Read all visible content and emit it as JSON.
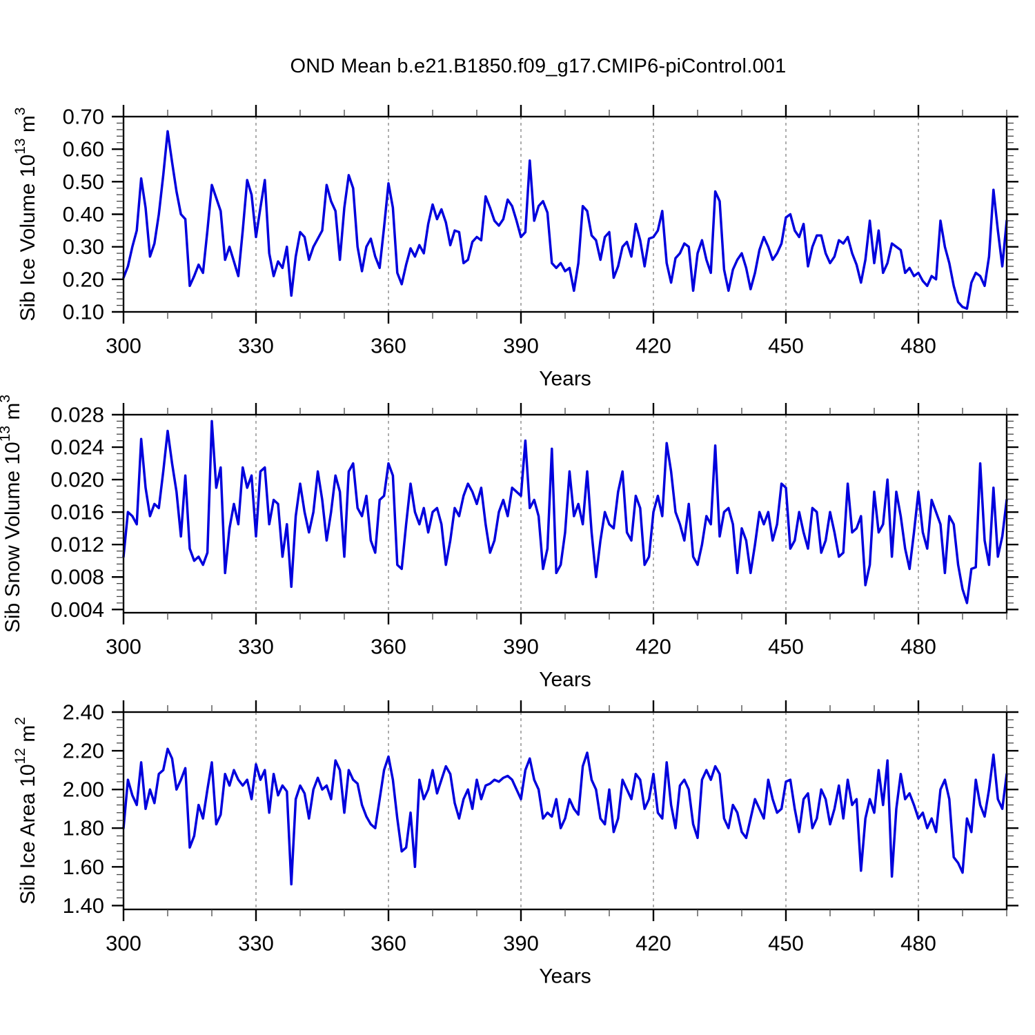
{
  "title": "OND Mean b.e21.B1850.f09_g17.CMIP6-piControl.001",
  "colors": {
    "line": "#0000dd",
    "frame": "#000000",
    "grid": "#808080",
    "minor_tick": "#444444",
    "background": "#ffffff"
  },
  "chart_data": [
    {
      "type": "line",
      "panel": "sib-ice-volume",
      "ylabel_segments": [
        {
          "t": "Sib Ice Volume 10"
        },
        {
          "t": "13",
          "sup": true
        },
        {
          "t": " m"
        },
        {
          "t": "3",
          "sup": true
        }
      ],
      "xlabel": "Years",
      "x_range": {
        "start": 300,
        "end": 500,
        "step": 1
      },
      "xlim": [
        300,
        500
      ],
      "xticks": [
        300,
        330,
        360,
        390,
        420,
        450,
        480
      ],
      "x_minor_step": 10,
      "grid_years": [
        330,
        360,
        390,
        420,
        450,
        480
      ],
      "ylim": [
        0.1,
        0.7
      ],
      "ytick_start": 0.1,
      "ytick_step": 0.1,
      "y_minor_step": 0.02,
      "ytick_decimals": 2,
      "values": [
        0.205,
        0.24,
        0.3,
        0.35,
        0.51,
        0.42,
        0.27,
        0.31,
        0.4,
        0.52,
        0.655,
        0.56,
        0.47,
        0.4,
        0.385,
        0.18,
        0.21,
        0.245,
        0.22,
        0.35,
        0.49,
        0.45,
        0.41,
        0.26,
        0.3,
        0.255,
        0.21,
        0.35,
        0.505,
        0.46,
        0.33,
        0.42,
        0.505,
        0.28,
        0.21,
        0.255,
        0.235,
        0.3,
        0.15,
        0.27,
        0.345,
        0.33,
        0.26,
        0.3,
        0.325,
        0.35,
        0.49,
        0.44,
        0.41,
        0.26,
        0.42,
        0.52,
        0.48,
        0.3,
        0.225,
        0.3,
        0.325,
        0.27,
        0.235,
        0.36,
        0.495,
        0.42,
        0.22,
        0.185,
        0.245,
        0.295,
        0.27,
        0.305,
        0.28,
        0.37,
        0.43,
        0.385,
        0.415,
        0.375,
        0.305,
        0.35,
        0.345,
        0.25,
        0.26,
        0.315,
        0.33,
        0.32,
        0.455,
        0.42,
        0.38,
        0.365,
        0.385,
        0.445,
        0.425,
        0.38,
        0.33,
        0.345,
        0.565,
        0.38,
        0.425,
        0.44,
        0.405,
        0.25,
        0.235,
        0.25,
        0.225,
        0.235,
        0.165,
        0.25,
        0.425,
        0.41,
        0.335,
        0.32,
        0.26,
        0.33,
        0.345,
        0.205,
        0.24,
        0.3,
        0.315,
        0.27,
        0.37,
        0.32,
        0.24,
        0.325,
        0.33,
        0.35,
        0.41,
        0.25,
        0.19,
        0.265,
        0.28,
        0.31,
        0.3,
        0.165,
        0.28,
        0.32,
        0.26,
        0.22,
        0.47,
        0.44,
        0.23,
        0.165,
        0.23,
        0.26,
        0.28,
        0.235,
        0.17,
        0.22,
        0.29,
        0.33,
        0.3,
        0.26,
        0.28,
        0.31,
        0.39,
        0.4,
        0.35,
        0.33,
        0.37,
        0.24,
        0.3,
        0.335,
        0.335,
        0.28,
        0.25,
        0.27,
        0.32,
        0.31,
        0.33,
        0.28,
        0.245,
        0.19,
        0.26,
        0.38,
        0.25,
        0.35,
        0.22,
        0.25,
        0.31,
        0.3,
        0.29,
        0.22,
        0.235,
        0.21,
        0.22,
        0.195,
        0.18,
        0.21,
        0.2,
        0.38,
        0.3,
        0.25,
        0.18,
        0.13,
        0.115,
        0.11,
        0.19,
        0.22,
        0.21,
        0.18,
        0.27,
        0.475,
        0.35,
        0.24,
        0.38
      ]
    },
    {
      "type": "line",
      "panel": "sib-snow-volume",
      "ylabel_segments": [
        {
          "t": "Sib Snow Volume 10"
        },
        {
          "t": "13",
          "sup": true
        },
        {
          "t": " m"
        },
        {
          "t": "3",
          "sup": true
        }
      ],
      "xlabel": "Years",
      "x_range": {
        "start": 300,
        "end": 500,
        "step": 1
      },
      "xlim": [
        300,
        500
      ],
      "xticks": [
        300,
        330,
        360,
        390,
        420,
        450,
        480
      ],
      "x_minor_step": 10,
      "grid_years": [
        330,
        360,
        390,
        420,
        450,
        480
      ],
      "ylim": [
        0.0036,
        0.028
      ],
      "ytick_start": 0.004,
      "ytick_step": 0.004,
      "y_minor_step": 0.0008,
      "ytick_decimals": 3,
      "values": [
        0.0105,
        0.016,
        0.0155,
        0.0145,
        0.025,
        0.019,
        0.0155,
        0.017,
        0.0165,
        0.021,
        0.026,
        0.022,
        0.0185,
        0.013,
        0.0205,
        0.0115,
        0.01,
        0.0105,
        0.0095,
        0.011,
        0.0272,
        0.019,
        0.0215,
        0.0085,
        0.014,
        0.017,
        0.0145,
        0.0215,
        0.019,
        0.0205,
        0.013,
        0.021,
        0.0215,
        0.0145,
        0.0175,
        0.017,
        0.0105,
        0.0145,
        0.0068,
        0.0155,
        0.0195,
        0.016,
        0.0135,
        0.016,
        0.021,
        0.0175,
        0.0125,
        0.016,
        0.0205,
        0.0185,
        0.0105,
        0.021,
        0.022,
        0.0165,
        0.0155,
        0.018,
        0.0125,
        0.011,
        0.0175,
        0.018,
        0.022,
        0.0205,
        0.0095,
        0.009,
        0.0145,
        0.0195,
        0.016,
        0.0145,
        0.0165,
        0.0135,
        0.016,
        0.0165,
        0.0145,
        0.0095,
        0.0125,
        0.0165,
        0.0155,
        0.018,
        0.0195,
        0.0185,
        0.017,
        0.019,
        0.0145,
        0.011,
        0.0125,
        0.016,
        0.0175,
        0.0155,
        0.019,
        0.0185,
        0.018,
        0.0248,
        0.0165,
        0.0175,
        0.0155,
        0.009,
        0.0115,
        0.0238,
        0.0085,
        0.0095,
        0.0135,
        0.021,
        0.0155,
        0.017,
        0.0145,
        0.021,
        0.0135,
        0.008,
        0.0125,
        0.016,
        0.0145,
        0.014,
        0.0185,
        0.021,
        0.0135,
        0.0125,
        0.018,
        0.0165,
        0.0095,
        0.0105,
        0.016,
        0.018,
        0.0155,
        0.0245,
        0.021,
        0.016,
        0.0145,
        0.0125,
        0.017,
        0.0105,
        0.0095,
        0.012,
        0.0155,
        0.0145,
        0.0242,
        0.013,
        0.016,
        0.0165,
        0.0145,
        0.0085,
        0.014,
        0.0125,
        0.0085,
        0.012,
        0.016,
        0.0145,
        0.016,
        0.0125,
        0.0145,
        0.0195,
        0.019,
        0.0115,
        0.0125,
        0.016,
        0.0135,
        0.0115,
        0.0165,
        0.016,
        0.011,
        0.0125,
        0.016,
        0.0135,
        0.0105,
        0.011,
        0.0195,
        0.0135,
        0.014,
        0.0155,
        0.007,
        0.0095,
        0.0185,
        0.0135,
        0.0145,
        0.02,
        0.0105,
        0.0185,
        0.0155,
        0.0115,
        0.009,
        0.0135,
        0.0185,
        0.0135,
        0.0115,
        0.0175,
        0.016,
        0.0145,
        0.0085,
        0.0155,
        0.0145,
        0.0095,
        0.0065,
        0.0048,
        0.009,
        0.0092,
        0.022,
        0.0125,
        0.0095,
        0.019,
        0.0105,
        0.013,
        0.0175
      ]
    },
    {
      "type": "line",
      "panel": "sib-ice-area",
      "ylabel_segments": [
        {
          "t": "Sib Ice Area 10"
        },
        {
          "t": "12",
          "sup": true
        },
        {
          "t": " m"
        },
        {
          "t": "2",
          "sup": true
        }
      ],
      "xlabel": "Years",
      "x_range": {
        "start": 300,
        "end": 500,
        "step": 1
      },
      "xlim": [
        300,
        500
      ],
      "xticks": [
        300,
        330,
        360,
        390,
        420,
        450,
        480
      ],
      "x_minor_step": 10,
      "grid_years": [
        330,
        360,
        390,
        420,
        450,
        480
      ],
      "ylim": [
        1.38,
        2.4
      ],
      "ytick_start": 1.4,
      "ytick_step": 0.2,
      "y_minor_step": 0.04,
      "ytick_decimals": 2,
      "values": [
        1.8,
        2.05,
        1.97,
        1.92,
        2.14,
        1.9,
        2.0,
        1.93,
        2.08,
        2.1,
        2.21,
        2.16,
        2.0,
        2.05,
        2.11,
        1.7,
        1.76,
        1.92,
        1.85,
        2.0,
        2.14,
        1.82,
        1.87,
        2.08,
        2.02,
        2.1,
        2.05,
        2.02,
        2.05,
        1.95,
        2.13,
        2.05,
        2.1,
        1.88,
        2.08,
        1.97,
        2.02,
        1.99,
        1.51,
        1.95,
        2.02,
        1.98,
        1.85,
        2.0,
        2.06,
        2.0,
        2.02,
        1.95,
        2.15,
        2.1,
        1.88,
        2.1,
        2.05,
        2.03,
        1.92,
        1.86,
        1.82,
        1.8,
        1.95,
        2.1,
        2.17,
        2.05,
        1.85,
        1.68,
        1.7,
        1.88,
        1.6,
        2.05,
        1.95,
        2.0,
        2.1,
        1.98,
        2.05,
        2.12,
        2.08,
        1.93,
        1.85,
        1.95,
        2.0,
        1.9,
        2.05,
        1.95,
        2.02,
        2.03,
        2.05,
        2.04,
        2.06,
        2.07,
        2.05,
        2.0,
        1.95,
        2.1,
        2.16,
        2.05,
        2.0,
        1.85,
        1.88,
        1.86,
        1.95,
        1.8,
        1.85,
        1.95,
        1.9,
        1.87,
        2.12,
        2.19,
        2.05,
        2.0,
        1.85,
        1.82,
        2.0,
        1.78,
        1.85,
        2.05,
        2.0,
        1.95,
        2.08,
        2.05,
        1.9,
        1.95,
        2.08,
        1.88,
        1.85,
        2.14,
        1.92,
        1.8,
        2.02,
        2.05,
        2.0,
        1.82,
        1.75,
        2.05,
        2.1,
        2.05,
        2.12,
        2.08,
        1.85,
        1.8,
        1.92,
        1.88,
        1.78,
        1.75,
        1.85,
        1.95,
        1.9,
        1.85,
        2.05,
        1.95,
        1.88,
        1.9,
        2.04,
        2.05,
        1.9,
        1.78,
        1.95,
        1.98,
        1.8,
        1.85,
        2.0,
        1.95,
        1.82,
        1.9,
        2.02,
        1.85,
        2.05,
        1.92,
        1.95,
        1.58,
        1.85,
        1.95,
        1.88,
        2.1,
        1.92,
        2.15,
        1.55,
        1.9,
        2.08,
        1.95,
        1.98,
        1.92,
        1.85,
        1.88,
        1.8,
        1.85,
        1.78,
        2.0,
        2.05,
        1.95,
        1.65,
        1.62,
        1.57,
        1.85,
        1.78,
        2.05,
        1.92,
        1.86,
        2.0,
        2.18,
        1.95,
        1.9,
        2.08
      ]
    }
  ]
}
